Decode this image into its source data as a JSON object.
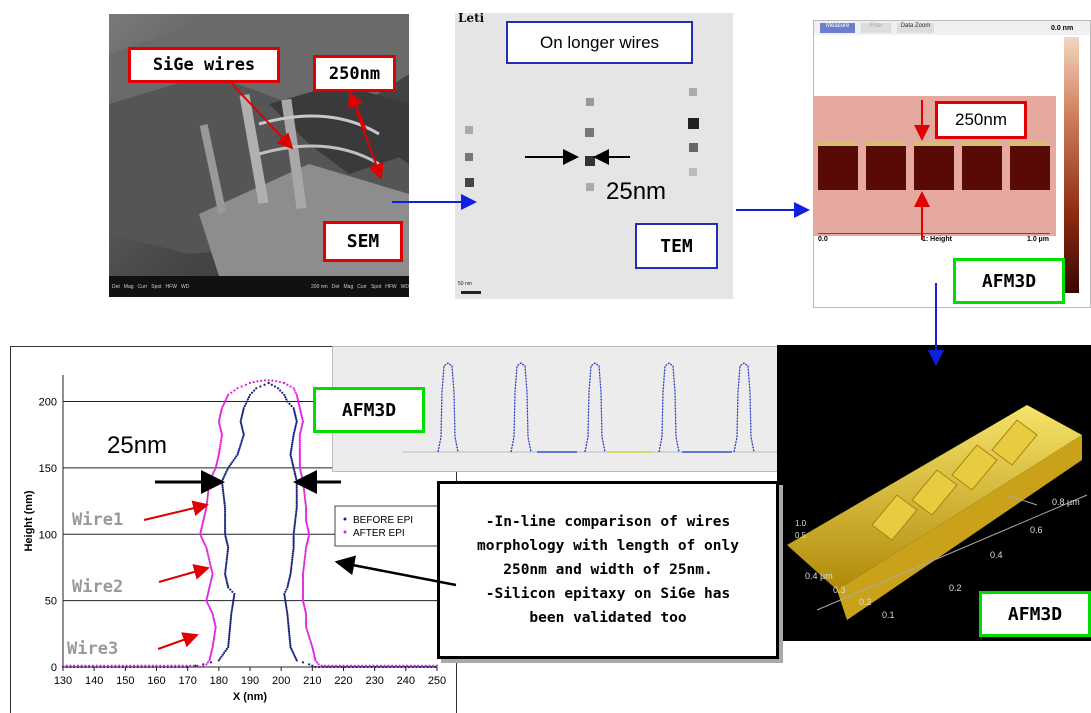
{
  "panels": {
    "sem": {
      "label": "SEM",
      "callouts": [
        "SiGe wires",
        "250nm"
      ],
      "databar": [
        "Det",
        "Mag",
        "Curr",
        "Spot",
        "HFW",
        "WD",
        "200 nm",
        "Det",
        "Mag",
        "Curr",
        "Spot",
        "HFW",
        "WD"
      ]
    },
    "tem": {
      "label": "TEM",
      "caption": "On longer wires",
      "dimension": "25nm",
      "logo": "Leti",
      "scale": "50 nm"
    },
    "afm_top": {
      "label": "AFM3D",
      "dimension": "250nm",
      "buttons": [
        "Measure",
        "Filter",
        "Data Zoom"
      ],
      "scale_top": "0.0 nm",
      "axis_left": "0.0",
      "axis_mid": "1: Height",
      "axis_right": "1.0 µm",
      "colors": {
        "background": "#e6a9a0",
        "wire": "#5a0a06",
        "stripe": "#d4c070"
      }
    },
    "afm_profile": {
      "label": "AFM3D"
    },
    "afm_3d": {
      "label": "AFM3D",
      "axis_labels": [
        "0.8 µm",
        "0.6",
        "0.4",
        "0.2",
        "0.4 µm",
        "0.3",
        "0.2",
        "0.1",
        "0.5",
        "1.0"
      ]
    }
  },
  "callout_box": {
    "line1": "-In-line comparison of wires",
    "line2": "morphology with length of only",
    "line3": "250nm and width of 25nm.",
    "line4": "-Silicon epitaxy on SiGe has",
    "line5": "been validated too"
  },
  "chart_annotations": {
    "dimension": "25nm",
    "wires": [
      "Wire1",
      "Wire2",
      "Wire3"
    ]
  },
  "chart_data": {
    "type": "scatter",
    "title": "",
    "xlabel": "X (nm)",
    "ylabel": "Height (nm)",
    "xlim": [
      130,
      250
    ],
    "ylim": [
      0,
      220
    ],
    "xticks": [
      "130",
      "140",
      "150",
      "160",
      "170",
      "180",
      "190",
      "200",
      "210",
      "220",
      "230",
      "240",
      "250"
    ],
    "yticks": [
      "0",
      "50",
      "100",
      "150",
      "200"
    ],
    "grid": "horizontal",
    "legend_position": "right",
    "series": [
      {
        "name": "BEFORE EPI",
        "color": "#1a237e",
        "profile": [
          [
            0,
            170,
            211
          ],
          [
            2,
            175,
            209
          ],
          [
            5,
            180,
            205
          ],
          [
            15,
            183,
            203
          ],
          [
            40,
            184,
            202
          ],
          [
            55,
            185,
            201
          ],
          [
            60,
            183,
            202
          ],
          [
            70,
            182,
            203
          ],
          [
            90,
            183,
            204
          ],
          [
            100,
            182,
            204
          ],
          [
            120,
            182,
            205
          ],
          [
            140,
            181,
            205
          ],
          [
            150,
            183,
            204
          ],
          [
            160,
            186,
            203
          ],
          [
            175,
            188,
            204
          ],
          [
            185,
            187,
            205
          ],
          [
            195,
            188,
            204
          ],
          [
            200,
            189,
            202
          ],
          [
            205,
            190,
            201
          ],
          [
            210,
            192,
            199
          ],
          [
            214,
            196,
            196
          ]
        ]
      },
      {
        "name": "AFTER EPI",
        "color": "#e020e0",
        "profile": [
          [
            0,
            174,
            214
          ],
          [
            2,
            176,
            212
          ],
          [
            5,
            177,
            211
          ],
          [
            15,
            178,
            210
          ],
          [
            30,
            179,
            208
          ],
          [
            40,
            178,
            208
          ],
          [
            50,
            176,
            207
          ],
          [
            60,
            177,
            207
          ],
          [
            70,
            178,
            207
          ],
          [
            90,
            176,
            208
          ],
          [
            100,
            174,
            209
          ],
          [
            110,
            175,
            208
          ],
          [
            120,
            176,
            208
          ],
          [
            140,
            177,
            207
          ],
          [
            150,
            179,
            206
          ],
          [
            160,
            180,
            206
          ],
          [
            175,
            181,
            206
          ],
          [
            185,
            180,
            207
          ],
          [
            195,
            181,
            206
          ],
          [
            205,
            183,
            205
          ],
          [
            210,
            186,
            204
          ],
          [
            214,
            190,
            201
          ]
        ]
      }
    ]
  }
}
